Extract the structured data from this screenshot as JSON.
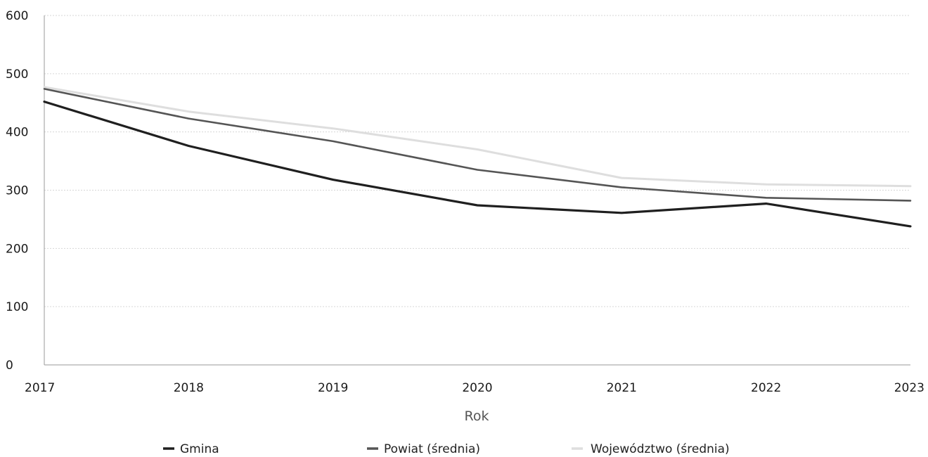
{
  "chart_data": {
    "type": "line",
    "title": "",
    "xlabel": "Rok",
    "ylabel": "",
    "x": [
      2017,
      2018,
      2019,
      2020,
      2021,
      2022,
      2023
    ],
    "x_tick_labels": [
      "2017",
      "2018",
      "2019",
      "2020",
      "2021",
      "2022",
      "2023"
    ],
    "ylim": [
      0,
      600
    ],
    "y_ticks": [
      0,
      100,
      200,
      300,
      400,
      500,
      600
    ],
    "y_tick_labels": [
      "0",
      "100",
      "200",
      "300",
      "400",
      "500",
      "600"
    ],
    "grid": true,
    "legend_position": "bottom",
    "series": [
      {
        "name": "Gmina",
        "color": "#1f1f1f",
        "values": [
          452,
          376,
          318,
          274,
          261,
          277,
          238
        ]
      },
      {
        "name": "Powiat (średnia)",
        "color": "#555555",
        "values": [
          474,
          423,
          384,
          335,
          305,
          287,
          282
        ]
      },
      {
        "name": "Województwo (średnia)",
        "color": "#dedede",
        "values": [
          477,
          435,
          406,
          370,
          321,
          310,
          307
        ]
      }
    ]
  }
}
